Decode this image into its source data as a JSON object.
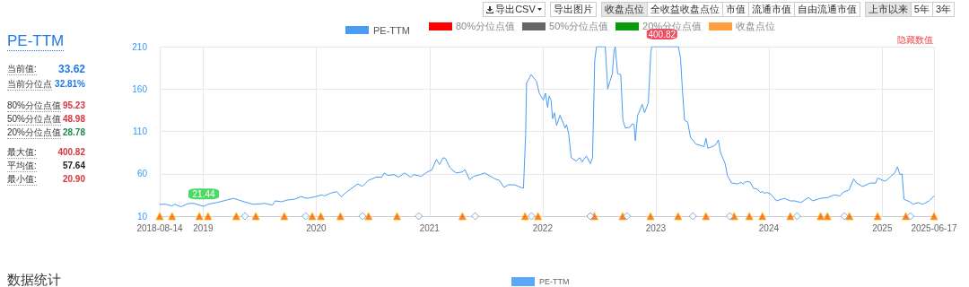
{
  "chart_data": {
    "type": "line",
    "title": "PE-TTM",
    "annotations": [
      "当前值:",
      "33.62",
      "当前分位点",
      "32.81%",
      "80%分位点值",
      "95.23",
      "50%分位点值",
      "48.98",
      "20%分位点值",
      "28.78",
      "最大值:",
      "400.82",
      "平均值:",
      "57.64",
      "最小值:",
      "20.90",
      "导出CSV",
      "导出图片",
      "收盘点位",
      "全收益收盘点位",
      "市值",
      "流通市值",
      "自由流通市值",
      "上市以来",
      "5年",
      "3年",
      "80%分位点值",
      "50%分位点值",
      "20%分位点值",
      "收盘点位",
      "隐藏数值",
      "数据统计",
      "PE-TTM",
      {
        "text": "400.82",
        "x": "2023-01-21",
        "y": 210
      },
      {
        "text": "21.44",
        "x": "2019-01-03",
        "y": 21.44
      }
    ],
    "xlim": [
      "2018-08-14",
      "2025-06-17"
    ],
    "xticks": [
      "2018-08-14",
      "2019",
      "2020",
      "2021",
      "2022",
      "2023",
      "2024",
      "2025",
      "2025-06-17"
    ],
    "ylim": [
      10,
      210
    ],
    "yticks": [
      10,
      60,
      110,
      160,
      210
    ],
    "grid": true,
    "legend": "top",
    "series": [
      {
        "name": "PE-TTM",
        "color": "#4a9bf5",
        "marker": "none",
        "line_style": "solid",
        "x": [
          "2018-08-14",
          "2018-09-03",
          "2018-09-22",
          "2018-10-02",
          "2018-10-21",
          "2018-11-15",
          "2018-12-04",
          "2019-01-03",
          "2019-01-16",
          "2019-02-14",
          "2019-04-09",
          "2019-05-13",
          "2019-06-11",
          "2019-07-20",
          "2019-08-13",
          "2019-08-22",
          "2019-09-11",
          "2019-09-30",
          "2019-10-24",
          "2019-11-13",
          "2019-12-02",
          "2019-12-30",
          "2020-01-18",
          "2020-01-28",
          "2020-02-16",
          "2020-03-07",
          "2020-03-22",
          "2020-04-10",
          "2020-05-14",
          "2020-05-29",
          "2020-06-17",
          "2020-07-12",
          "2020-07-31",
          "2020-08-08",
          "2020-08-20",
          "2020-09-08",
          "2020-09-23",
          "2020-10-12",
          "2020-11-01",
          "2020-11-10",
          "2020-12-05",
          "2020-12-20",
          "2021-01-09",
          "2021-01-23",
          "2021-02-02",
          "2021-02-14",
          "2021-02-21",
          "2021-03-08",
          "2021-03-27",
          "2021-04-16",
          "2021-04-25",
          "2021-05-10",
          "2021-05-24",
          "2021-06-13",
          "2021-06-27",
          "2021-07-12",
          "2021-07-31",
          "2021-08-15",
          "2021-08-29",
          "2021-09-13",
          "2021-10-02",
          "2021-10-22",
          "2021-10-31",
          "2021-11-07",
          "2021-11-10",
          "2021-11-25",
          "2021-12-12",
          "2021-12-21",
          "2022-01-03",
          "2022-01-10",
          "2022-01-17",
          "2022-01-22",
          "2022-01-28",
          "2022-02-02",
          "2022-02-08",
          "2022-02-15",
          "2022-02-26",
          "2022-03-08",
          "2022-03-14",
          "2022-03-19",
          "2022-03-26",
          "2022-04-03",
          "2022-04-19",
          "2022-05-01",
          "2022-05-08",
          "2022-05-22",
          "2022-06-04",
          "2022-06-11",
          "2022-06-18",
          "2022-06-24",
          "2022-07-22",
          "2022-07-24",
          "2022-07-30",
          "2022-08-06",
          "2022-08-14",
          "2022-08-19",
          "2022-08-23",
          "2022-08-31",
          "2022-09-10",
          "2022-09-17",
          "2022-09-25",
          "2022-10-10",
          "2022-10-17",
          "2022-10-23",
          "2022-10-27",
          "2022-11-03",
          "2022-11-18",
          "2022-11-26",
          "2022-12-08",
          "2022-12-16",
          "2022-12-19",
          "2023-01-21",
          "2023-03-15",
          "2023-03-22",
          "2023-03-28",
          "2023-04-04",
          "2023-04-14",
          "2023-04-23",
          "2023-05-11",
          "2023-05-30",
          "2023-06-06",
          "2023-06-12",
          "2023-06-18",
          "2023-07-08",
          "2023-07-15",
          "2023-07-22",
          "2023-07-29",
          "2023-08-13",
          "2023-08-20",
          "2023-09-03",
          "2023-09-23",
          "2023-10-02",
          "2023-10-10",
          "2023-10-21",
          "2023-11-02",
          "2023-11-12",
          "2023-11-24",
          "2023-12-04",
          "2023-12-11",
          "2023-12-18",
          "2023-12-26",
          "2024-01-07",
          "2024-01-26",
          "2024-02-20",
          "2024-03-10",
          "2024-03-25",
          "2024-04-13",
          "2024-05-08",
          "2024-05-22",
          "2024-06-15",
          "2024-07-10",
          "2024-07-29",
          "2024-08-18",
          "2024-08-27",
          "2024-09-16",
          "2024-10-01",
          "2024-10-10",
          "2024-10-30",
          "2024-11-23",
          "2024-12-11",
          "2024-12-17",
          "2025-01-10",
          "2025-01-26",
          "2025-02-10",
          "2025-02-19",
          "2025-02-27",
          "2025-03-06",
          "2025-03-12",
          "2025-03-30",
          "2025-04-10",
          "2025-04-26",
          "2025-05-12",
          "2025-06-01",
          "2025-06-17"
        ],
        "values": [
          24,
          24,
          22,
          24,
          21,
          25,
          25,
          21.44,
          24,
          26,
          31,
          27,
          24,
          25,
          23,
          28,
          27,
          29,
          30,
          33,
          31,
          33,
          35,
          34,
          37,
          39,
          33,
          39,
          48,
          45,
          52,
          56,
          56,
          61,
          58,
          59,
          56,
          61,
          56,
          59,
          57,
          61,
          65,
          77,
          71,
          79,
          78,
          67,
          61,
          62,
          65,
          53,
          57,
          59,
          61,
          58,
          54,
          52,
          44,
          47,
          47,
          44,
          43,
          106,
          167,
          177,
          169,
          155,
          147,
          155,
          138,
          152,
          147,
          125,
          132,
          117,
          129,
          120,
          114,
          118,
          107,
          79,
          75,
          79,
          74,
          81,
          72,
          79,
          194,
          210,
          210,
          198,
          160,
          169,
          178,
          204,
          210,
          178,
          177,
          123,
          114,
          115,
          119,
          118,
          99,
          128,
          142,
          132,
          144,
          203,
          210,
          210,
          210,
          196,
          159,
          123,
          121,
          103,
          95,
          93,
          92,
          102,
          90,
          93,
          95,
          100,
          85,
          72,
          58,
          49,
          48,
          50,
          48,
          51,
          50,
          43,
          42,
          38,
          39,
          37,
          38,
          36,
          28,
          31,
          28,
          28,
          26,
          32,
          28,
          31,
          32,
          35,
          34,
          38,
          41,
          54,
          49,
          45,
          49,
          49,
          55,
          51,
          56,
          61,
          68,
          59,
          60,
          30,
          27,
          24,
          26,
          24,
          28,
          33.62
        ]
      },
      {
        "color": "#ff5a00",
        "type": "scatter",
        "marker": "triangle",
        "x": [
          "2018-08-14",
          "2018-09-23",
          "2018-12-20",
          "2019-01-17",
          "2019-04-18",
          "2019-06-20",
          "2019-09-20",
          "2019-12-19",
          "2020-01-16",
          "2020-03-19",
          "2020-06-18",
          "2020-09-18",
          "2021-04-17",
          "2021-11-05",
          "2021-12-17",
          "2022-06-17",
          "2022-09-16",
          "2022-12-15",
          "2023-03-14",
          "2023-06-12",
          "2023-09-11",
          "2023-10-30",
          "2023-12-11",
          "2024-03-10",
          "2024-06-16",
          "2024-07-08",
          "2024-09-17",
          "2024-12-17",
          "2025-03-18",
          "2025-06-17"
        ],
        "values": [
          10,
          10,
          10,
          10,
          10,
          10,
          10,
          10,
          10,
          10,
          10,
          10,
          10,
          10,
          10,
          10,
          10,
          10,
          10,
          10,
          10,
          10,
          10,
          10,
          10,
          10,
          10,
          10,
          10,
          10
        ]
      },
      {
        "color": "#5b9bd5",
        "type": "scatter",
        "marker": "diamond",
        "x": [
          "2019-05-16",
          "2019-11-28",
          "2020-05-29",
          "2020-11-27",
          "2021-05-28",
          "2021-11-26",
          "2022-06-04",
          "2022-09-30",
          "2023-05-01",
          "2023-08-28",
          "2024-04-01",
          "2024-09-01",
          "2025-04-02"
        ],
        "values": [
          10,
          10,
          10,
          10,
          10,
          10,
          10,
          10,
          10,
          10,
          10,
          10,
          10
        ]
      }
    ]
  }
}
